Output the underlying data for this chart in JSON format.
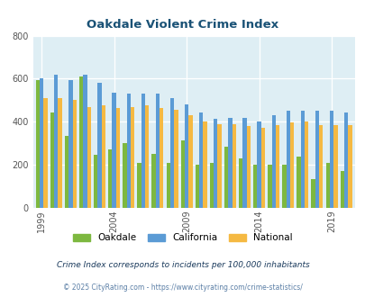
{
  "title": "Oakdale Violent Crime Index",
  "years": [
    1999,
    2000,
    2001,
    2002,
    2003,
    2004,
    2005,
    2006,
    2007,
    2008,
    2009,
    2010,
    2011,
    2012,
    2013,
    2014,
    2015,
    2016,
    2017,
    2018,
    2019,
    2020
  ],
  "oakdale": [
    595,
    445,
    335,
    610,
    245,
    270,
    300,
    210,
    250,
    210,
    315,
    200,
    210,
    285,
    230,
    200,
    200,
    200,
    240,
    135,
    210,
    170
  ],
  "california": [
    600,
    620,
    595,
    620,
    580,
    535,
    530,
    530,
    530,
    510,
    480,
    445,
    415,
    420,
    420,
    400,
    430,
    450,
    450,
    450,
    450,
    445
  ],
  "national": [
    510,
    510,
    500,
    470,
    475,
    465,
    470,
    475,
    465,
    455,
    430,
    400,
    390,
    390,
    380,
    370,
    385,
    395,
    400,
    385,
    385,
    385
  ],
  "colors": {
    "oakdale": "#7db840",
    "california": "#5b9bd5",
    "national": "#f5b942"
  },
  "ylim": [
    0,
    800
  ],
  "yticks": [
    0,
    200,
    400,
    600,
    800
  ],
  "xtick_labels": [
    "1999",
    "2004",
    "2009",
    "2014",
    "2019"
  ],
  "xtick_positions": [
    1999,
    2004,
    2009,
    2014,
    2019
  ],
  "background_color": "#deeef4",
  "subtitle": "Crime Index corresponds to incidents per 100,000 inhabitants",
  "footer": "© 2025 CityRating.com - https://www.cityrating.com/crime-statistics/",
  "title_color": "#1a5276",
  "subtitle_color": "#1a3a5c",
  "footer_color": "#5b7fa6"
}
